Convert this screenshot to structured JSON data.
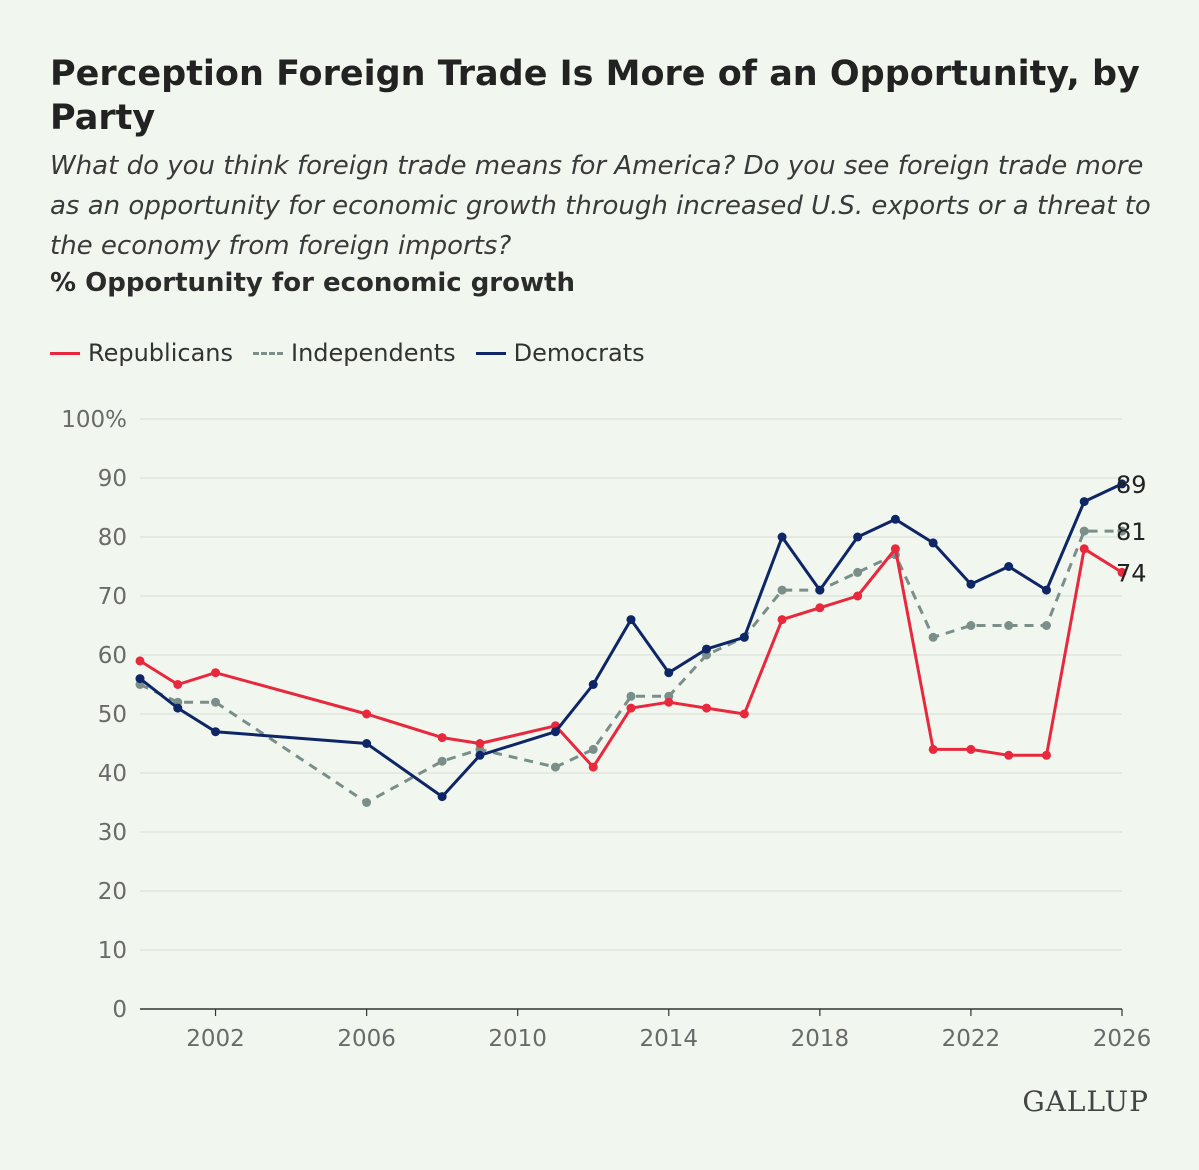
{
  "title": "Perception Foreign Trade Is More of an Opportunity, by Party",
  "subtitle": "What do you think foreign trade means for America? Do you see foreign trade more as an opportunity for economic growth through increased U.S. exports or a threat to the economy from foreign imports?",
  "measure_label": "% Opportunity for economic growth",
  "logo_text": "GALLUP",
  "chart_data": {
    "type": "line",
    "title": "Perception Foreign Trade Is More of an Opportunity, by Party",
    "ylabel": "% Opportunity for economic growth",
    "xlabel": "",
    "ylim": [
      0,
      100
    ],
    "xlim": [
      2000,
      2026
    ],
    "y_ticks": [
      0,
      10,
      20,
      30,
      40,
      50,
      60,
      70,
      80,
      90,
      100
    ],
    "y_tick_labels": [
      "0",
      "10",
      "20",
      "30",
      "40",
      "50",
      "60",
      "70",
      "80",
      "90",
      "100%"
    ],
    "x_ticks": [
      2002,
      2006,
      2010,
      2014,
      2018,
      2022,
      2026
    ],
    "x_tick_labels": [
      "2002",
      "2006",
      "2010",
      "2014",
      "2018",
      "2022",
      "2026"
    ],
    "grid": "horizontal",
    "legend_position": "top-left",
    "series": [
      {
        "name": "Republicans",
        "color": "#e8283c",
        "style": "solid",
        "end_label": "74",
        "x": [
          2000,
          2001,
          2002,
          2006,
          2008,
          2009,
          2011,
          2012,
          2013,
          2014,
          2015,
          2016,
          2017,
          2018,
          2019,
          2020,
          2021,
          2022,
          2023,
          2024,
          2025,
          2026
        ],
        "values": [
          59,
          55,
          57,
          50,
          46,
          45,
          48,
          41,
          51,
          52,
          51,
          50,
          66,
          68,
          70,
          78,
          44,
          44,
          43,
          43,
          78,
          74
        ]
      },
      {
        "name": "Independents",
        "color": "#7a8f8a",
        "style": "dashed",
        "end_label": "81",
        "x": [
          2000,
          2001,
          2002,
          2006,
          2008,
          2009,
          2011,
          2012,
          2013,
          2014,
          2015,
          2016,
          2017,
          2018,
          2019,
          2020,
          2021,
          2022,
          2023,
          2024,
          2025,
          2026
        ],
        "values": [
          55,
          52,
          52,
          35,
          42,
          44,
          41,
          44,
          53,
          53,
          60,
          63,
          71,
          71,
          74,
          77,
          63,
          65,
          65,
          65,
          81,
          81
        ]
      },
      {
        "name": "Democrats",
        "color": "#0e2566",
        "style": "solid",
        "end_label": "89",
        "x": [
          2000,
          2001,
          2002,
          2006,
          2008,
          2009,
          2011,
          2012,
          2013,
          2014,
          2015,
          2016,
          2017,
          2018,
          2019,
          2020,
          2021,
          2022,
          2023,
          2024,
          2025,
          2026
        ],
        "values": [
          56,
          51,
          47,
          45,
          36,
          43,
          47,
          55,
          66,
          57,
          61,
          63,
          80,
          71,
          80,
          83,
          79,
          72,
          75,
          71,
          86,
          89
        ]
      }
    ]
  }
}
